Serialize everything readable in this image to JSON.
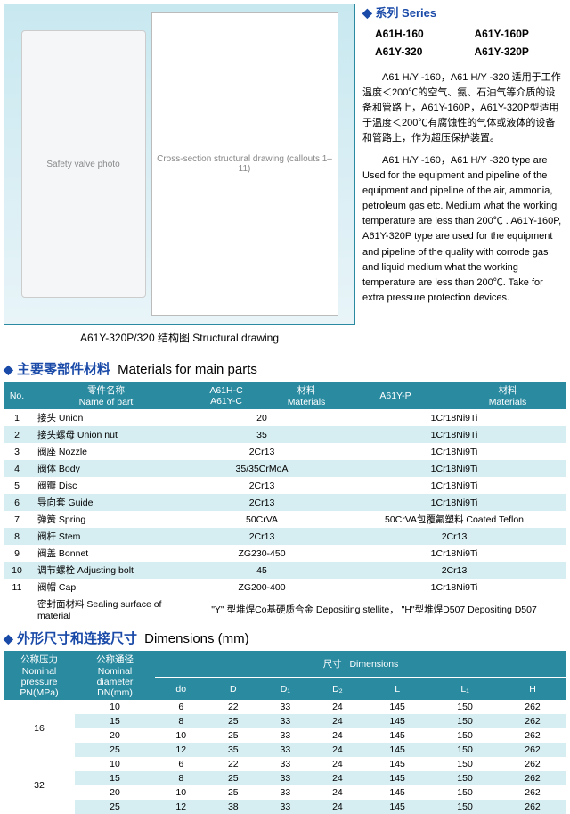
{
  "series": {
    "header_cn": "系列",
    "header_en": "Series",
    "items": [
      "A61H-160",
      "A61Y-160P",
      "A61Y-320",
      "A61Y-320P"
    ]
  },
  "caption": "A61Y-320P/320  结构图  Structural drawing",
  "photo_placeholder": "Safety valve photo",
  "schematic_placeholder": "Cross-section structural drawing (callouts 1–11)",
  "desc_cn_1": "A61 H/Y -160，A61 H/Y -320 适用于工作温度＜200℃的空气、氨、石油气等介质的设备和管路上，A61Y-160P，A61Y-320P型适用于温度＜200℃有腐蚀性的气体或液体的设备和管路上，作为超压保护装置。",
  "desc_en_1": "A61 H/Y -160，A61 H/Y -320 type are Used for the equipment and pipeline of the equipment and pipeline of the air, ammonia, petroleum gas etc. Medium what the working temperature are less than 200℃ . A61Y-160P, A61Y-320P type are used for the equipment and pipeline of the quality with corrode gas and liquid medium what the working temperature are less than 200℃. Take for extra pressure protection devices.",
  "sections": {
    "materials_cn": "主要零部件材料",
    "materials_en": "Materials for main parts",
    "dims_cn": "外形尺寸和连接尺寸",
    "dims_en": "Dimensions (mm)"
  },
  "materials": {
    "head": {
      "no": "No.",
      "name_cn": "零件名称",
      "name_en": "Name of part",
      "col2_a": "A61H-C",
      "col2_b": "A61Y-C",
      "mat_cn": "材料",
      "mat_en": "Materials",
      "col3": "A61Y-P"
    },
    "rows": [
      {
        "no": "1",
        "name": "接头  Union",
        "a": "20",
        "b": "1Cr18Ni9Ti"
      },
      {
        "no": "2",
        "name": "接头螺母  Union nut",
        "a": "35",
        "b": "1Cr18Ni9Ti"
      },
      {
        "no": "3",
        "name": "阀座  Nozzle",
        "a": "2Cr13",
        "b": "1Cr18Ni9Ti"
      },
      {
        "no": "4",
        "name": "阀体  Body",
        "a": "35/35CrMoA",
        "b": "1Cr18Ni9Ti"
      },
      {
        "no": "5",
        "name": "阀瓣  Disc",
        "a": "2Cr13",
        "b": "1Cr18Ni9Ti"
      },
      {
        "no": "6",
        "name": "导向套  Guide",
        "a": "2Cr13",
        "b": "1Cr18Ni9Ti"
      },
      {
        "no": "7",
        "name": "弹簧  Spring",
        "a": "50CrVA",
        "b": "50CrVA包覆氟塑料  Coated Teflon"
      },
      {
        "no": "8",
        "name": "阀杆  Stem",
        "a": "2Cr13",
        "b": "2Cr13"
      },
      {
        "no": "9",
        "name": "阀盖  Bonnet",
        "a": "ZG230-450",
        "b": "1Cr18Ni9Ti"
      },
      {
        "no": "10",
        "name": "调节螺栓  Adjusting bolt",
        "a": "45",
        "b": "2Cr13"
      },
      {
        "no": "11",
        "name": "阀帽  Cap",
        "a": "ZG200-400",
        "b": "1Cr18Ni9Ti"
      }
    ],
    "sealing": {
      "label": "密封面材料  Sealing surface of material",
      "val": "\"Y\" 型堆焊Co基硬质合金  Depositing stellite，  \"H\"型堆焊D507  Depositing D507"
    }
  },
  "dimensions": {
    "head": {
      "pn_cn": "公称压力",
      "pn_en": "Nominal pressure",
      "pn_unit": "PN(MPa)",
      "dn_cn": "公称通径",
      "dn_en": "Nominal diameter",
      "dn_unit": "DN(mm)",
      "dims_cn": "尺寸",
      "dims_en": "Dimensions",
      "cols": [
        "do",
        "D",
        "D₁",
        "D₂",
        "L",
        "L₁",
        "H"
      ]
    },
    "groups": [
      {
        "pn": "16",
        "rows": [
          {
            "dn": "10",
            "v": [
              "6",
              "22",
              "33",
              "24",
              "145",
              "150",
              "262"
            ]
          },
          {
            "dn": "15",
            "v": [
              "8",
              "25",
              "33",
              "24",
              "145",
              "150",
              "262"
            ]
          },
          {
            "dn": "20",
            "v": [
              "10",
              "25",
              "33",
              "24",
              "145",
              "150",
              "262"
            ]
          },
          {
            "dn": "25",
            "v": [
              "12",
              "35",
              "33",
              "24",
              "145",
              "150",
              "262"
            ]
          }
        ]
      },
      {
        "pn": "32",
        "rows": [
          {
            "dn": "10",
            "v": [
              "6",
              "22",
              "33",
              "24",
              "145",
              "150",
              "262"
            ]
          },
          {
            "dn": "15",
            "v": [
              "8",
              "25",
              "33",
              "24",
              "145",
              "150",
              "262"
            ]
          },
          {
            "dn": "20",
            "v": [
              "10",
              "25",
              "33",
              "24",
              "145",
              "150",
              "262"
            ]
          },
          {
            "dn": "25",
            "v": [
              "12",
              "38",
              "33",
              "24",
              "145",
              "150",
              "262"
            ]
          }
        ]
      }
    ]
  },
  "colors": {
    "accent": "#1a4aa8",
    "teal": "#2a8aa0",
    "band": "#d6edf1"
  }
}
